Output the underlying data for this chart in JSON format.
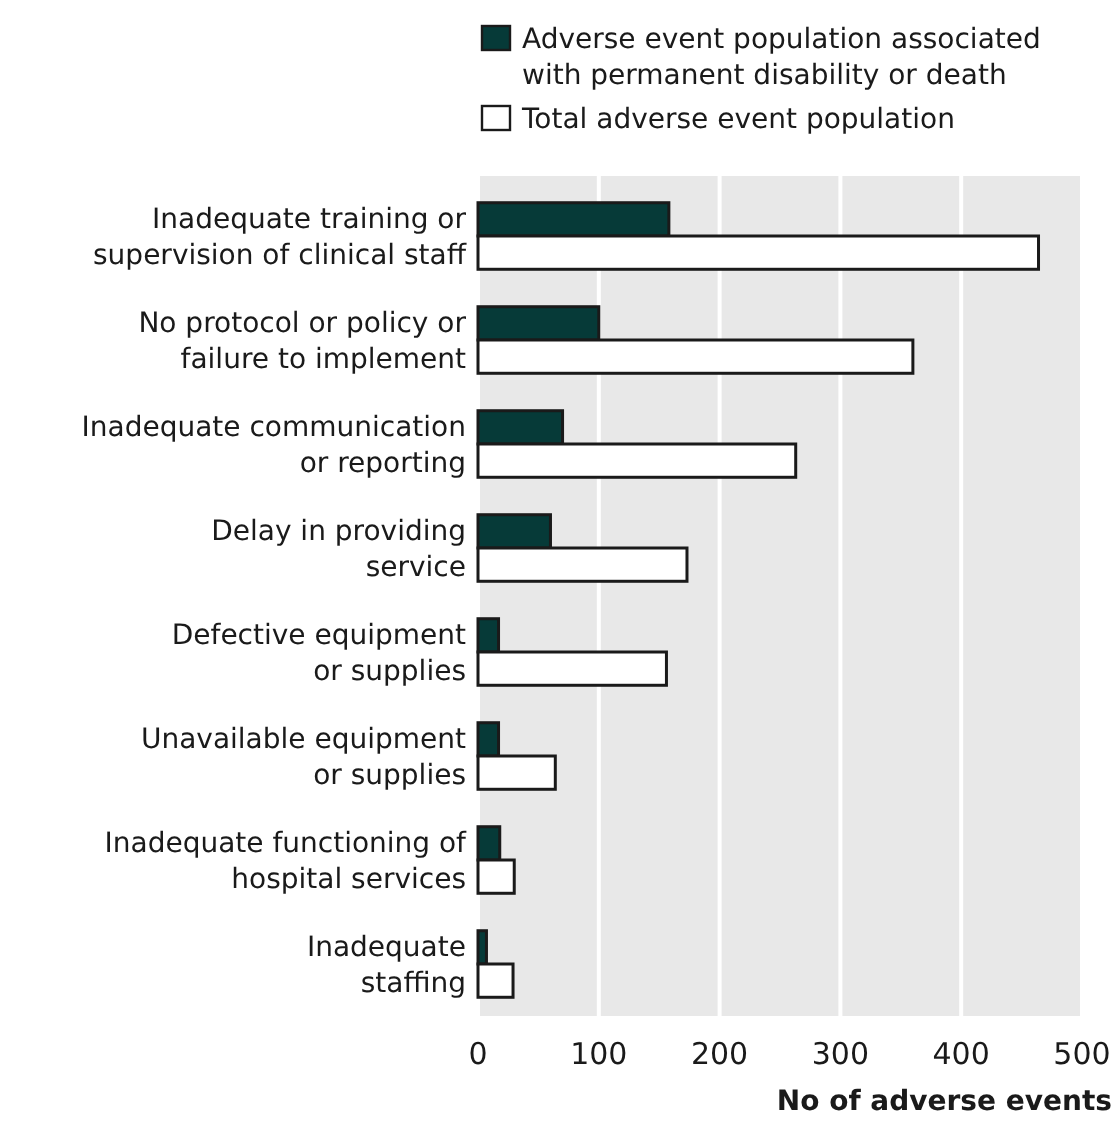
{
  "chart_data": {
    "type": "bar",
    "orientation": "horizontal",
    "xlabel": "No of adverse events",
    "categories": [
      "Inadequate training or\nsupervision of clinical staff",
      "No protocol or policy or\nfailure to implement",
      "Inadequate communication\nor reporting",
      "Delay in providing\nservice",
      "Defective equipment\nor supplies",
      "Unavailable equipment\nor supplies",
      "Inadequate functioning of\nhospital services",
      "Inadequate\nstaffing"
    ],
    "series": [
      {
        "name": "Adverse event population associated\nwith permanent disability or death",
        "color": "#063a38",
        "values": [
          158,
          100,
          70,
          60,
          17,
          17,
          18,
          7
        ]
      },
      {
        "name": "Total adverse event population",
        "color": "#ffffff",
        "values": [
          464,
          360,
          263,
          173,
          156,
          64,
          30,
          29
        ]
      }
    ],
    "xlim": [
      0,
      500
    ],
    "xticks": [
      0,
      100,
      200,
      300,
      400,
      500
    ],
    "grid": "x",
    "legend": "top right"
  }
}
